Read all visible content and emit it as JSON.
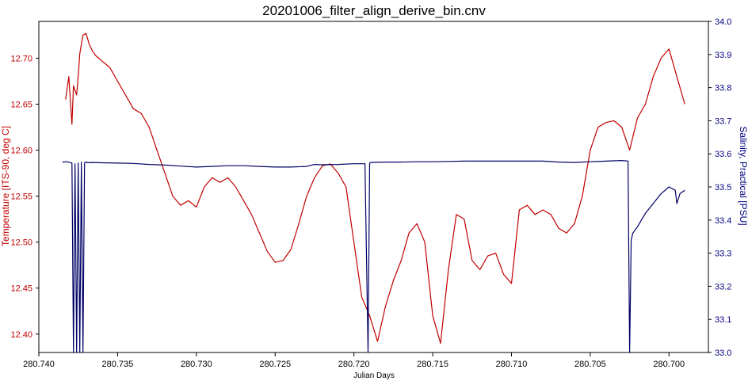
{
  "chart_data": {
    "type": "line",
    "title": "20201006_filter_align_derive_bin.cnv",
    "xlabel": "Julian Days",
    "ylabel_left": "Temperature [ITS-90, deg C]",
    "ylabel_right": "Salinity, Practical [PSU]",
    "x_reversed": true,
    "xlim": [
      280.74,
      280.6975
    ],
    "ylim_left": [
      12.38,
      12.74
    ],
    "ylim_right": [
      33.0,
      34.0
    ],
    "x_ticks": [
      "280.740",
      "280.735",
      "280.730",
      "280.725",
      "280.720",
      "280.715",
      "280.710",
      "280.705",
      "280.700"
    ],
    "y_left_ticks": [
      "12.40",
      "12.45",
      "12.50",
      "12.55",
      "12.60",
      "12.65",
      "12.70"
    ],
    "y_right_ticks": [
      "33.0",
      "33.1",
      "33.2",
      "33.3",
      "33.4",
      "33.5",
      "33.6",
      "33.7",
      "33.8",
      "33.9",
      "34.0"
    ],
    "series": [
      {
        "name": "Temperature [ITS-90, deg C]",
        "axis": "left",
        "color": "#c00000",
        "x": [
          280.7383,
          280.7381,
          280.7379,
          280.7378,
          280.7376,
          280.7375,
          280.7374,
          280.7372,
          280.737,
          280.7368,
          280.7366,
          280.7364,
          280.736,
          280.7355,
          280.735,
          280.7345,
          280.734,
          280.7335,
          280.733,
          280.7325,
          280.732,
          280.7315,
          280.731,
          280.7305,
          280.73,
          280.7295,
          280.729,
          280.7285,
          280.728,
          280.7275,
          280.727,
          280.7265,
          280.726,
          280.7255,
          280.725,
          280.7245,
          280.724,
          280.7235,
          280.723,
          280.7225,
          280.722,
          280.7215,
          280.721,
          280.7205,
          280.72,
          280.7195,
          280.719,
          280.7185,
          280.718,
          280.7175,
          280.717,
          280.7165,
          280.716,
          280.7155,
          280.715,
          280.7145,
          280.714,
          280.7135,
          280.713,
          280.7125,
          280.712,
          280.7115,
          280.711,
          280.7105,
          280.71,
          280.7095,
          280.709,
          280.7085,
          280.708,
          280.7075,
          280.707,
          280.7065,
          280.706,
          280.7055,
          280.705,
          280.7045,
          280.704,
          280.7035,
          280.703,
          280.7025,
          280.702,
          280.7015,
          280.701,
          280.7005,
          280.7,
          280.6995,
          280.699
        ],
        "y": [
          12.655,
          12.68,
          12.628,
          12.67,
          12.66,
          12.68,
          12.705,
          12.725,
          12.727,
          12.715,
          12.708,
          12.703,
          12.697,
          12.69,
          12.675,
          12.66,
          12.645,
          12.64,
          12.625,
          12.6,
          12.575,
          12.55,
          12.54,
          12.545,
          12.538,
          12.56,
          12.57,
          12.565,
          12.57,
          12.56,
          12.545,
          12.53,
          12.51,
          12.49,
          12.478,
          12.48,
          12.492,
          12.52,
          12.55,
          12.57,
          12.583,
          12.585,
          12.575,
          12.56,
          12.5,
          12.44,
          12.42,
          12.392,
          12.43,
          12.458,
          12.48,
          12.51,
          12.52,
          12.5,
          12.42,
          12.39,
          12.47,
          12.53,
          12.525,
          12.48,
          12.47,
          12.485,
          12.488,
          12.465,
          12.455,
          12.535,
          12.54,
          12.53,
          12.535,
          12.53,
          12.515,
          12.51,
          12.52,
          12.55,
          12.6,
          12.625,
          12.63,
          12.632,
          12.625,
          12.6,
          12.635,
          12.65,
          12.68,
          12.7,
          12.71,
          12.68,
          12.65
        ],
        "_note_ignore": ""
      },
      {
        "name": "Salinity, Practical [PSU]",
        "axis": "right",
        "color": "#000066",
        "x": [
          280.7385,
          280.7382,
          280.7379,
          280.7378,
          280.7377,
          280.7376,
          280.7375,
          280.7374,
          280.7373,
          280.7372,
          280.7371,
          280.737,
          280.7369,
          280.7366,
          280.736,
          280.735,
          280.734,
          280.733,
          280.732,
          280.731,
          280.73,
          280.729,
          280.728,
          280.727,
          280.726,
          280.725,
          280.724,
          280.723,
          280.7225,
          280.722,
          280.721,
          280.72,
          280.7193,
          280.7191,
          280.719,
          280.7189,
          280.718,
          280.717,
          280.716,
          280.715,
          280.714,
          280.713,
          280.712,
          280.711,
          280.71,
          280.709,
          280.708,
          280.707,
          280.706,
          280.705,
          280.704,
          280.703,
          280.7026,
          280.7025,
          280.7024,
          280.7023,
          280.702,
          280.7015,
          280.701,
          280.7005,
          280.7,
          280.6996,
          280.6995,
          280.6993,
          280.699
        ],
        "y": [
          33.575,
          33.576,
          33.572,
          33.0,
          33.57,
          33.0,
          33.572,
          33.0,
          33.575,
          33.0,
          33.573,
          33.576,
          33.573,
          33.574,
          33.573,
          33.572,
          33.571,
          33.568,
          33.566,
          33.563,
          33.56,
          33.562,
          33.564,
          33.564,
          33.562,
          33.56,
          33.56,
          33.562,
          33.568,
          33.567,
          33.568,
          33.57,
          33.57,
          33.0,
          33.572,
          33.574,
          33.575,
          33.575,
          33.576,
          33.576,
          33.577,
          33.578,
          33.578,
          33.578,
          33.578,
          33.578,
          33.578,
          33.575,
          33.574,
          33.576,
          33.578,
          33.58,
          33.578,
          33.0,
          33.34,
          33.36,
          33.38,
          33.42,
          33.45,
          33.48,
          33.5,
          33.49,
          33.45,
          33.48,
          33.49
        ]
      }
    ],
    "grid": false,
    "legend": "none"
  }
}
